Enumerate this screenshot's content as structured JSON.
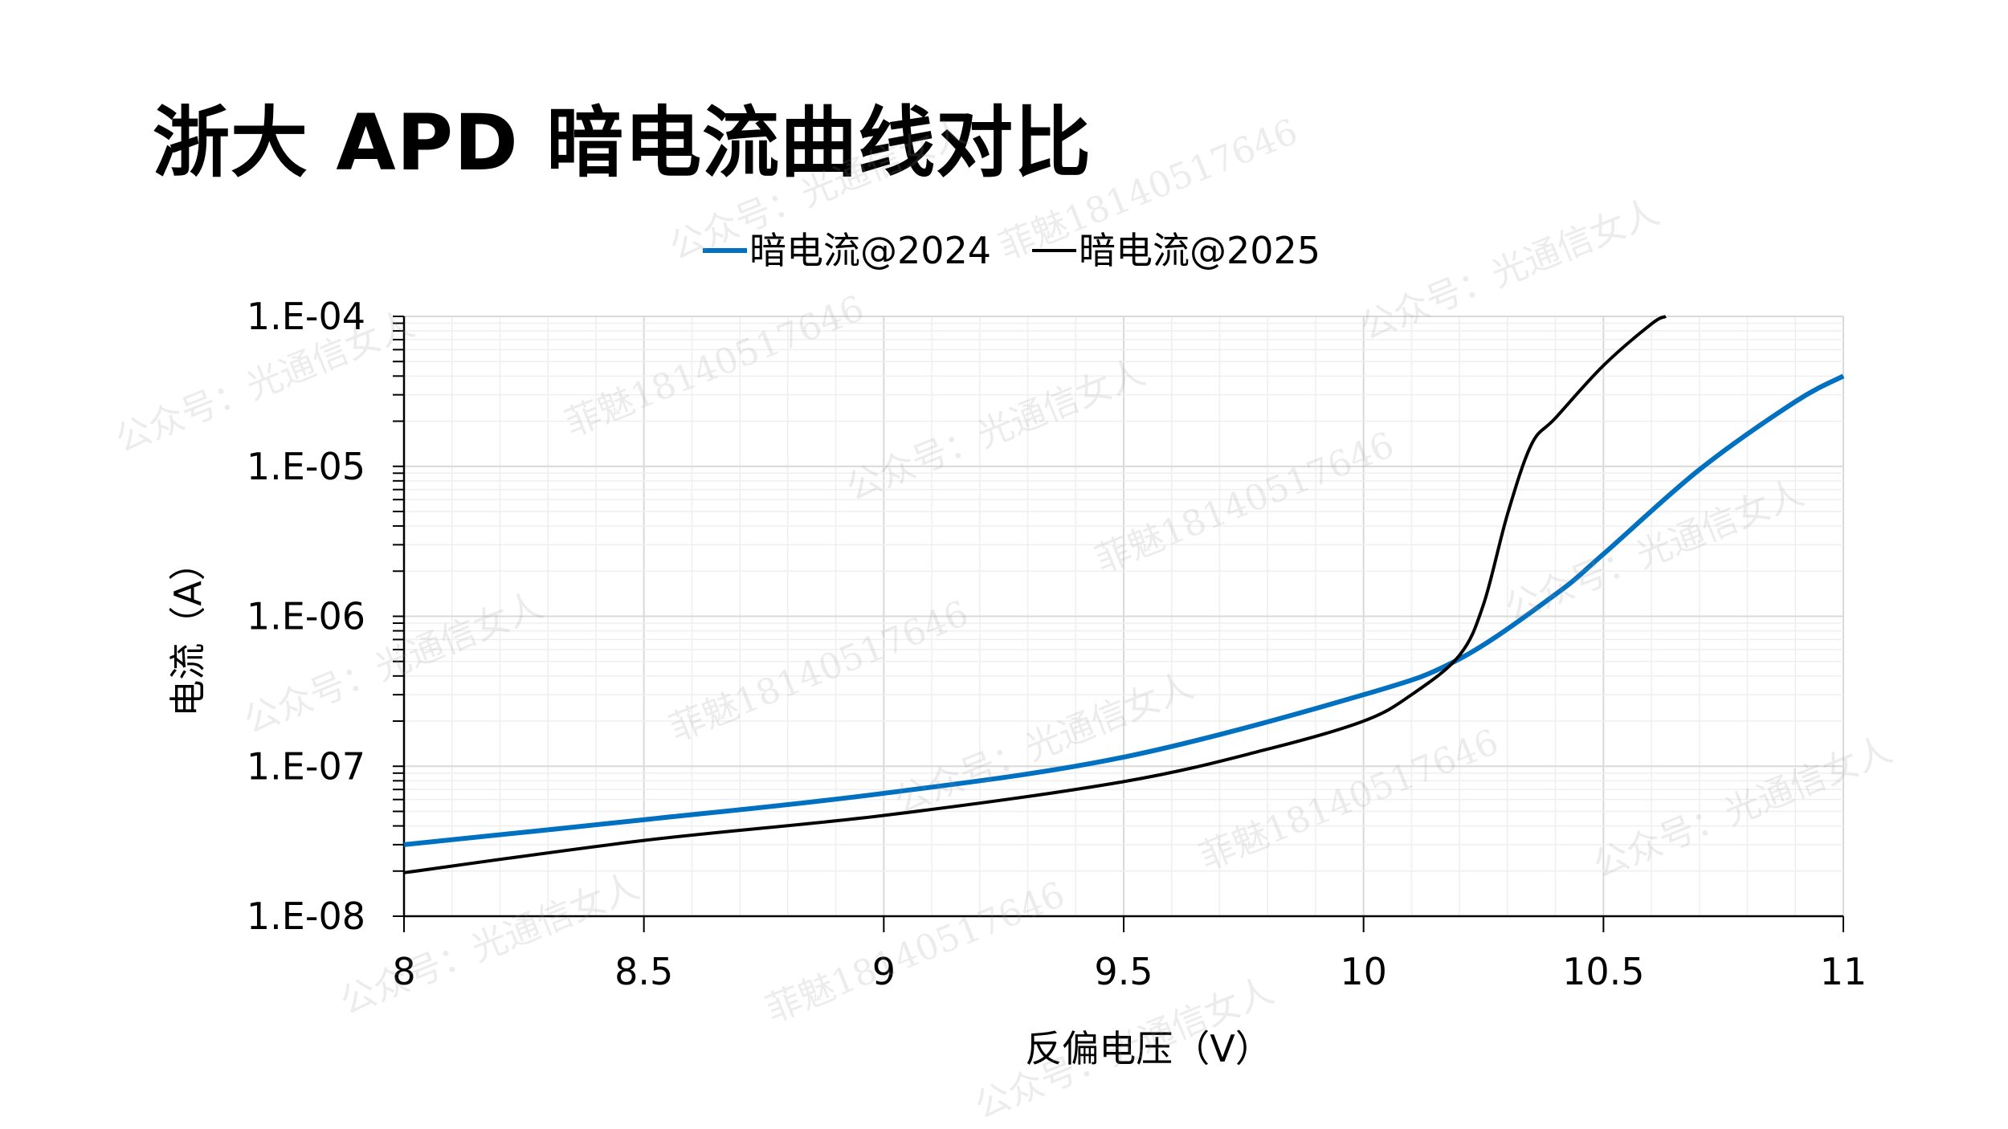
{
  "title": "浙大 APD 暗电流曲线对比",
  "watermarks": [
    "公众号：光通信女人",
    "菲魅18140517646"
  ],
  "chart_data": {
    "type": "line",
    "title": "浙大 APD 暗电流曲线对比",
    "xlabel": "反偏电压（V）",
    "ylabel": "电流（A）",
    "xlim": [
      8,
      11
    ],
    "ylim": [
      1e-08,
      0.0001
    ],
    "yscale": "log",
    "grid": true,
    "legend_position": "top-center",
    "x_ticks": [
      "8",
      "8.5",
      "9",
      "9.5",
      "10",
      "10.5",
      "11"
    ],
    "y_ticks": [
      "1.E-08",
      "1.E-07",
      "1.E-06",
      "1.E-05",
      "1.E-04"
    ],
    "series": [
      {
        "name": "暗电流@2024",
        "color": "#0070C0",
        "x": [
          8,
          8.5,
          9,
          9.5,
          10,
          10.2,
          10.4,
          10.5,
          10.7,
          10.9,
          11
        ],
        "y": [
          3e-08,
          4.4e-08,
          6.6e-08,
          1.15e-07,
          3e-07,
          5.2e-07,
          1.4e-06,
          2.6e-06,
          9.5e-06,
          2.7e-05,
          4e-05
        ]
      },
      {
        "name": "暗电流@2025",
        "color": "#000000",
        "x": [
          8,
          8.5,
          9,
          9.5,
          9.8,
          10,
          10.1,
          10.2,
          10.25,
          10.3,
          10.35,
          10.4,
          10.5,
          10.6,
          10.63
        ],
        "y": [
          1.95e-08,
          3.2e-08,
          4.7e-08,
          7.9e-08,
          1.3e-07,
          2e-07,
          3e-07,
          5.5e-07,
          1.2e-06,
          4.8e-06,
          1.4e-05,
          2.1e-05,
          4.7e-05,
          8.9e-05,
          0.0001
        ]
      }
    ]
  }
}
